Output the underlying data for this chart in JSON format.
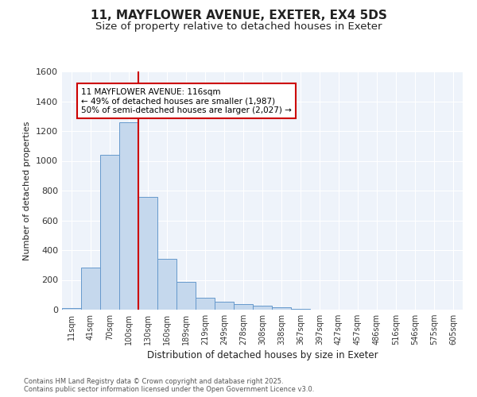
{
  "title_line1": "11, MAYFLOWER AVENUE, EXETER, EX4 5DS",
  "title_line2": "Size of property relative to detached houses in Exeter",
  "xlabel": "Distribution of detached houses by size in Exeter",
  "ylabel": "Number of detached properties",
  "bar_color": "#c5d8ed",
  "bar_edge_color": "#6699cc",
  "background_color": "#ffffff",
  "plot_bg_color": "#eef3fa",
  "grid_color": "#ffffff",
  "vline_color": "#cc0000",
  "vline_index": 3.5,
  "annotation_line1": "11 MAYFLOWER AVENUE: 116sqm",
  "annotation_line2": "← 49% of detached houses are smaller (1,987)",
  "annotation_line3": "50% of semi-detached houses are larger (2,027) →",
  "annotation_box_color": "#cc0000",
  "footer_text": "Contains HM Land Registry data © Crown copyright and database right 2025.\nContains public sector information licensed under the Open Government Licence v3.0.",
  "categories": [
    "11sqm",
    "41sqm",
    "70sqm",
    "100sqm",
    "130sqm",
    "160sqm",
    "189sqm",
    "219sqm",
    "249sqm",
    "278sqm",
    "308sqm",
    "338sqm",
    "367sqm",
    "397sqm",
    "427sqm",
    "457sqm",
    "486sqm",
    "516sqm",
    "546sqm",
    "575sqm",
    "605sqm"
  ],
  "values": [
    10,
    285,
    1040,
    1260,
    760,
    340,
    185,
    80,
    55,
    40,
    25,
    15,
    5,
    1,
    1,
    0,
    0,
    0,
    0,
    0,
    0
  ],
  "ylim_max": 1600,
  "yticks": [
    0,
    200,
    400,
    600,
    800,
    1000,
    1200,
    1400,
    1600
  ]
}
